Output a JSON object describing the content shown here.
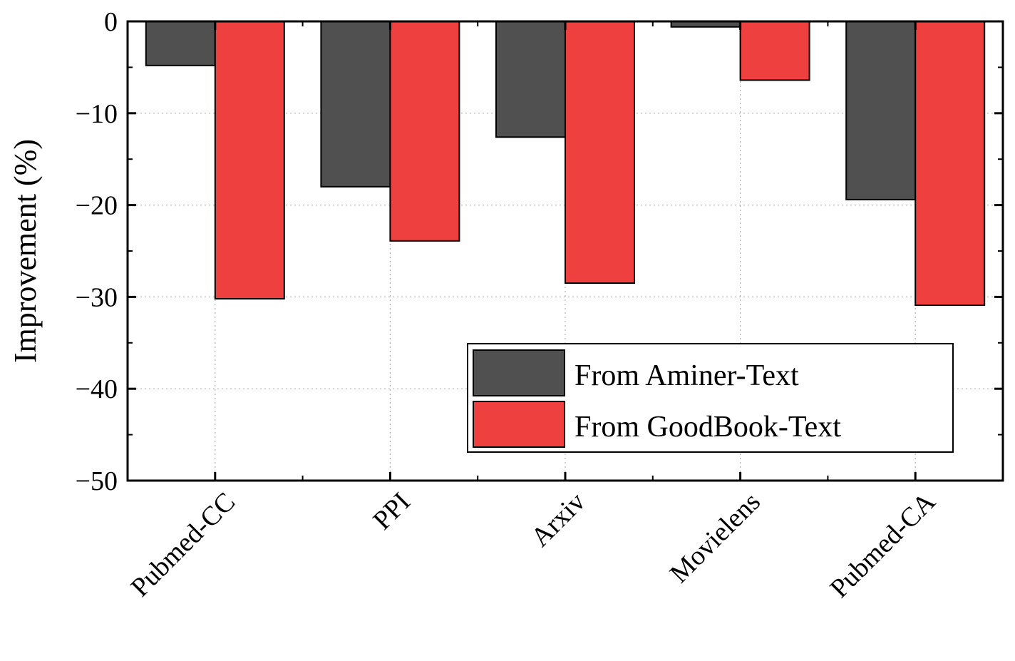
{
  "chart_data": {
    "type": "bar",
    "title": "",
    "xlabel": "",
    "ylabel": "Improvement (%)",
    "ylim": [
      -50,
      0
    ],
    "yticks": [
      0,
      -10,
      -20,
      -30,
      -40,
      -50
    ],
    "ytick_labels": [
      "0",
      "−10",
      "−20",
      "−30",
      "−40",
      "−50"
    ],
    "categories": [
      "Pubmed-CC",
      "PPI",
      "Arxiv",
      "Movielens",
      "Pubmed-CA"
    ],
    "series": [
      {
        "name": "From Aminer-Text",
        "color": "#505050",
        "values": [
          -4.8,
          -18.0,
          -12.6,
          -0.6,
          -19.4
        ]
      },
      {
        "name": "From GoodBook-Text",
        "color": "#ef4040",
        "values": [
          -30.2,
          -23.9,
          -28.5,
          -6.4,
          -30.9
        ]
      }
    ],
    "grid": true,
    "legend_position": "lower-right"
  }
}
